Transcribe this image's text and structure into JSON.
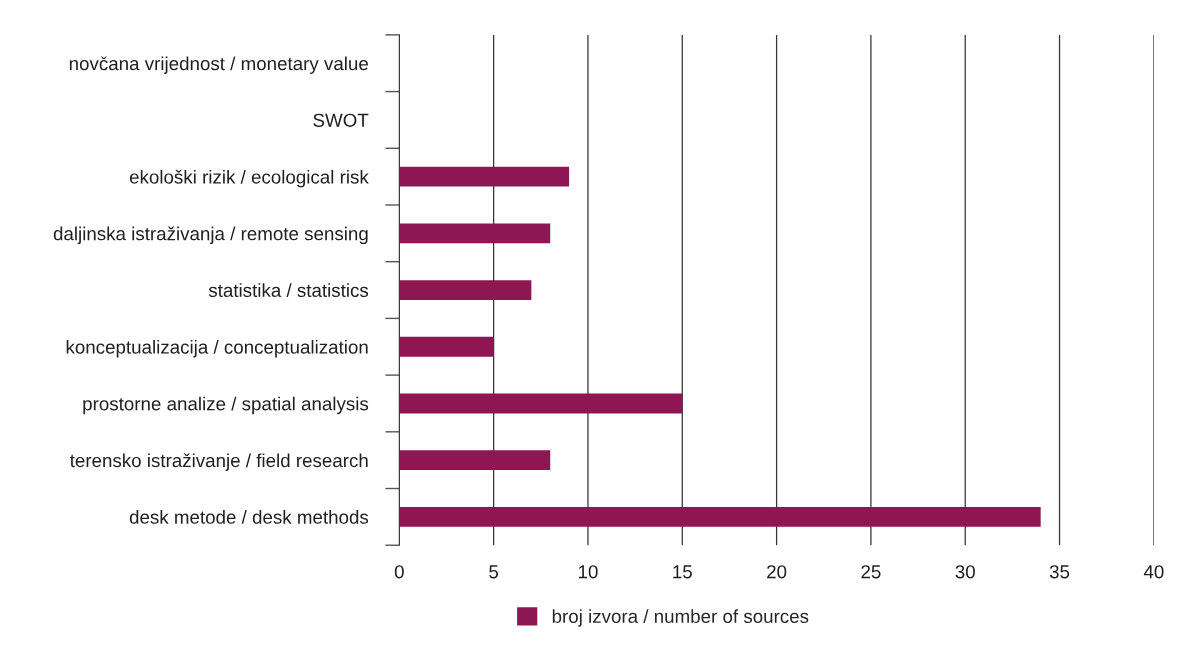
{
  "chart_data": {
    "type": "bar",
    "orientation": "horizontal",
    "categories": [
      "novčana vrijednost / monetary value",
      "SWOT",
      "ekološki rizik / ecological risk",
      "daljinska istraživanja / remote sensing",
      "statistika / statistics",
      "konceptualizacija / conceptualization",
      "prostorne analize / spatial analysis",
      "terensko istraživanje / field research",
      "desk metode / desk methods"
    ],
    "series": [
      {
        "name": "broj izvora / number of sources",
        "color": "#8e1652",
        "values": [
          null,
          null,
          9,
          8,
          7,
          5,
          15,
          8,
          34
        ]
      }
    ],
    "xlim": [
      0,
      40
    ],
    "xticks": [
      0,
      5,
      10,
      15,
      20,
      25,
      30,
      35,
      40
    ],
    "grid": "x",
    "legend": "bottom"
  }
}
